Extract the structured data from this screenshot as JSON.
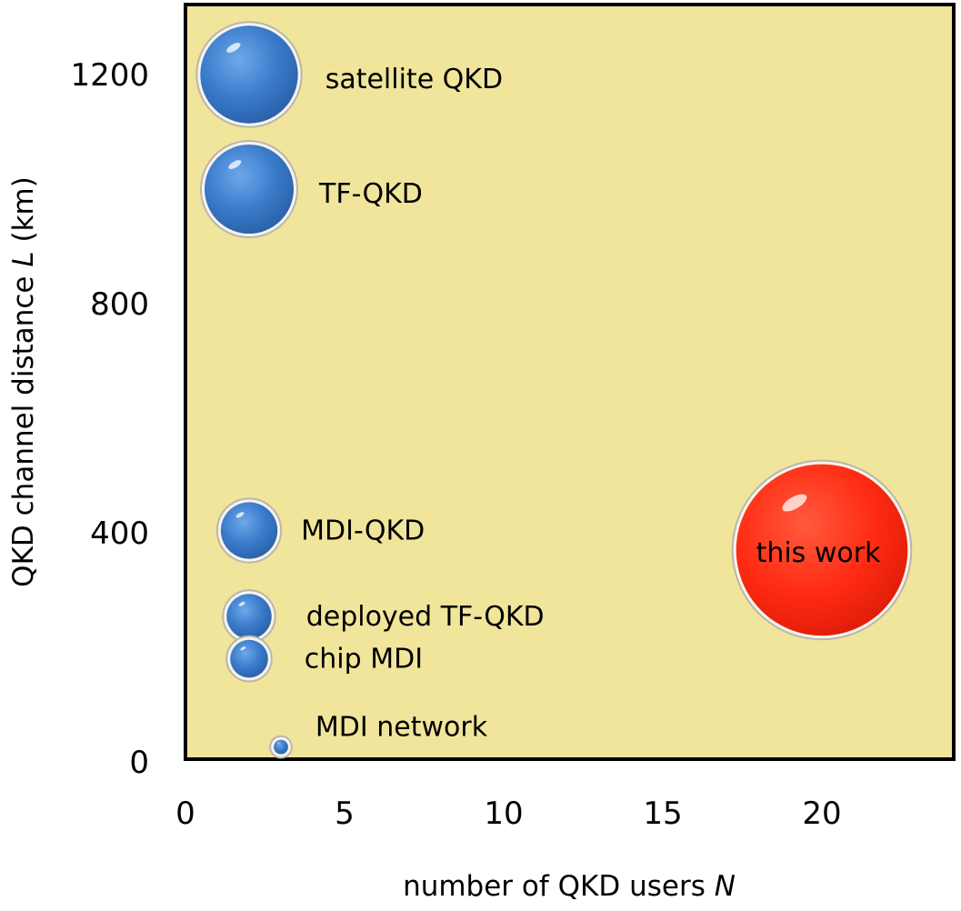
{
  "chart_data": {
    "type": "scatter",
    "xlabel": "number of QKD users N",
    "ylabel": "QKD channel distance L (km)",
    "xlim": [
      0,
      24
    ],
    "ylim": [
      0,
      1320
    ],
    "x_ticks": [
      "0",
      "5",
      "10",
      "15",
      "20"
    ],
    "y_ticks": [
      "0",
      "400",
      "800",
      "1200"
    ],
    "background": "#f0e59b",
    "points": [
      {
        "label": "satellite QKD",
        "x": 2,
        "y": 1200,
        "size": 1200,
        "color": "#3d7fd0"
      },
      {
        "label": "TF-QKD",
        "x": 2,
        "y": 1000,
        "size": 1000,
        "color": "#3d7fd0"
      },
      {
        "label": "MDI-QKD",
        "x": 2,
        "y": 404,
        "size": 404,
        "color": "#3d7fd0"
      },
      {
        "label": "deployed TF-QKD",
        "x": 2,
        "y": 254,
        "size": 254,
        "color": "#3d7fd0"
      },
      {
        "label": "chip MDI",
        "x": 2,
        "y": 180,
        "size": 180,
        "color": "#3d7fd0"
      },
      {
        "label": "MDI network",
        "x": 3,
        "y": 26,
        "size": 26,
        "color": "#3d7fd0"
      },
      {
        "label": "this work",
        "x": 20,
        "y": 370,
        "size": 3700,
        "color": "#ff2a12"
      }
    ]
  }
}
